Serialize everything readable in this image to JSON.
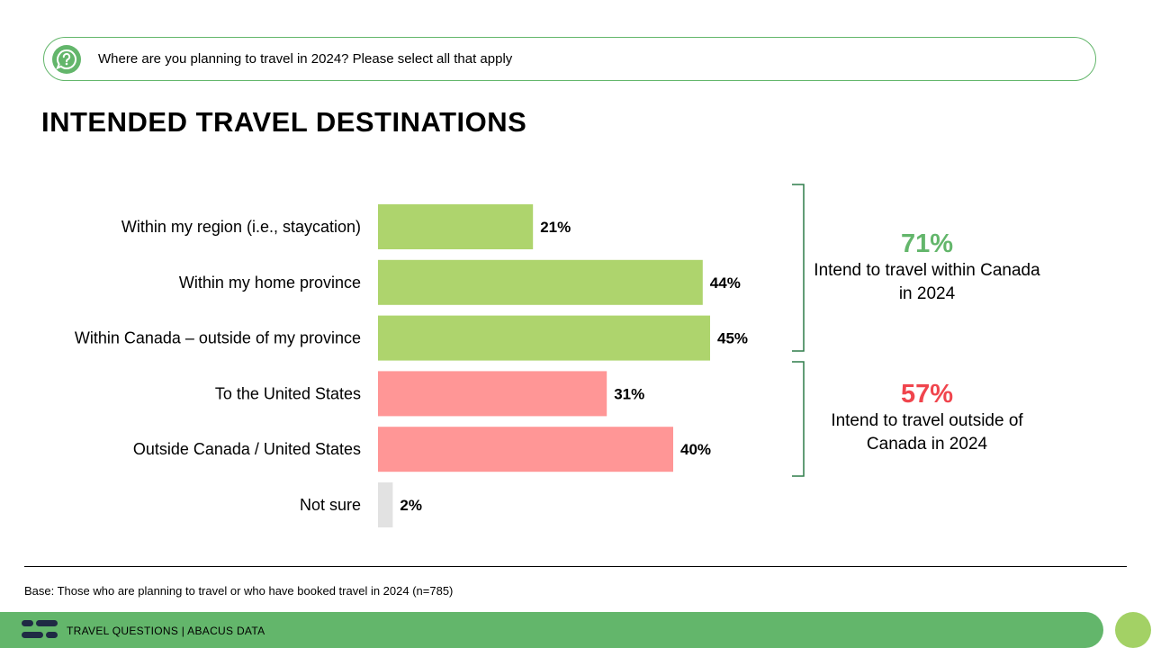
{
  "question": "Where are you planning to travel in 2024? Please select all that apply",
  "title": "INTENDED TRAVEL DESTINATIONS",
  "chart_data": {
    "type": "bar",
    "orientation": "horizontal",
    "categories": [
      "Within my region (i.e., staycation)",
      "Within my home province",
      "Within Canada – outside of my province",
      "To the United States",
      "Outside Canada / United States",
      "Not sure"
    ],
    "values": [
      21,
      44,
      45,
      31,
      40,
      2
    ],
    "value_labels": [
      "21%",
      "44%",
      "45%",
      "31%",
      "40%",
      "2%"
    ],
    "bar_colors": [
      "#aed46d",
      "#aed46d",
      "#aed46d",
      "#ff9696",
      "#ff9696",
      "#e2e2e2"
    ],
    "xlim": [
      0,
      100
    ],
    "grid": false
  },
  "callouts": {
    "canada": {
      "pct": "71%",
      "text": "Intend to travel within Canada in 2024",
      "color": "#63b66b"
    },
    "outside": {
      "pct": "57%",
      "text": "Intend to travel outside of Canada in 2024",
      "color": "#f0454d"
    }
  },
  "base_note": "Base: Those who are planning to travel or who have booked travel in 2024 (n=785)",
  "footer": {
    "text": "TRAVEL QUESTIONS | ABACUS DATA",
    "bar_color": "#63b66b"
  }
}
